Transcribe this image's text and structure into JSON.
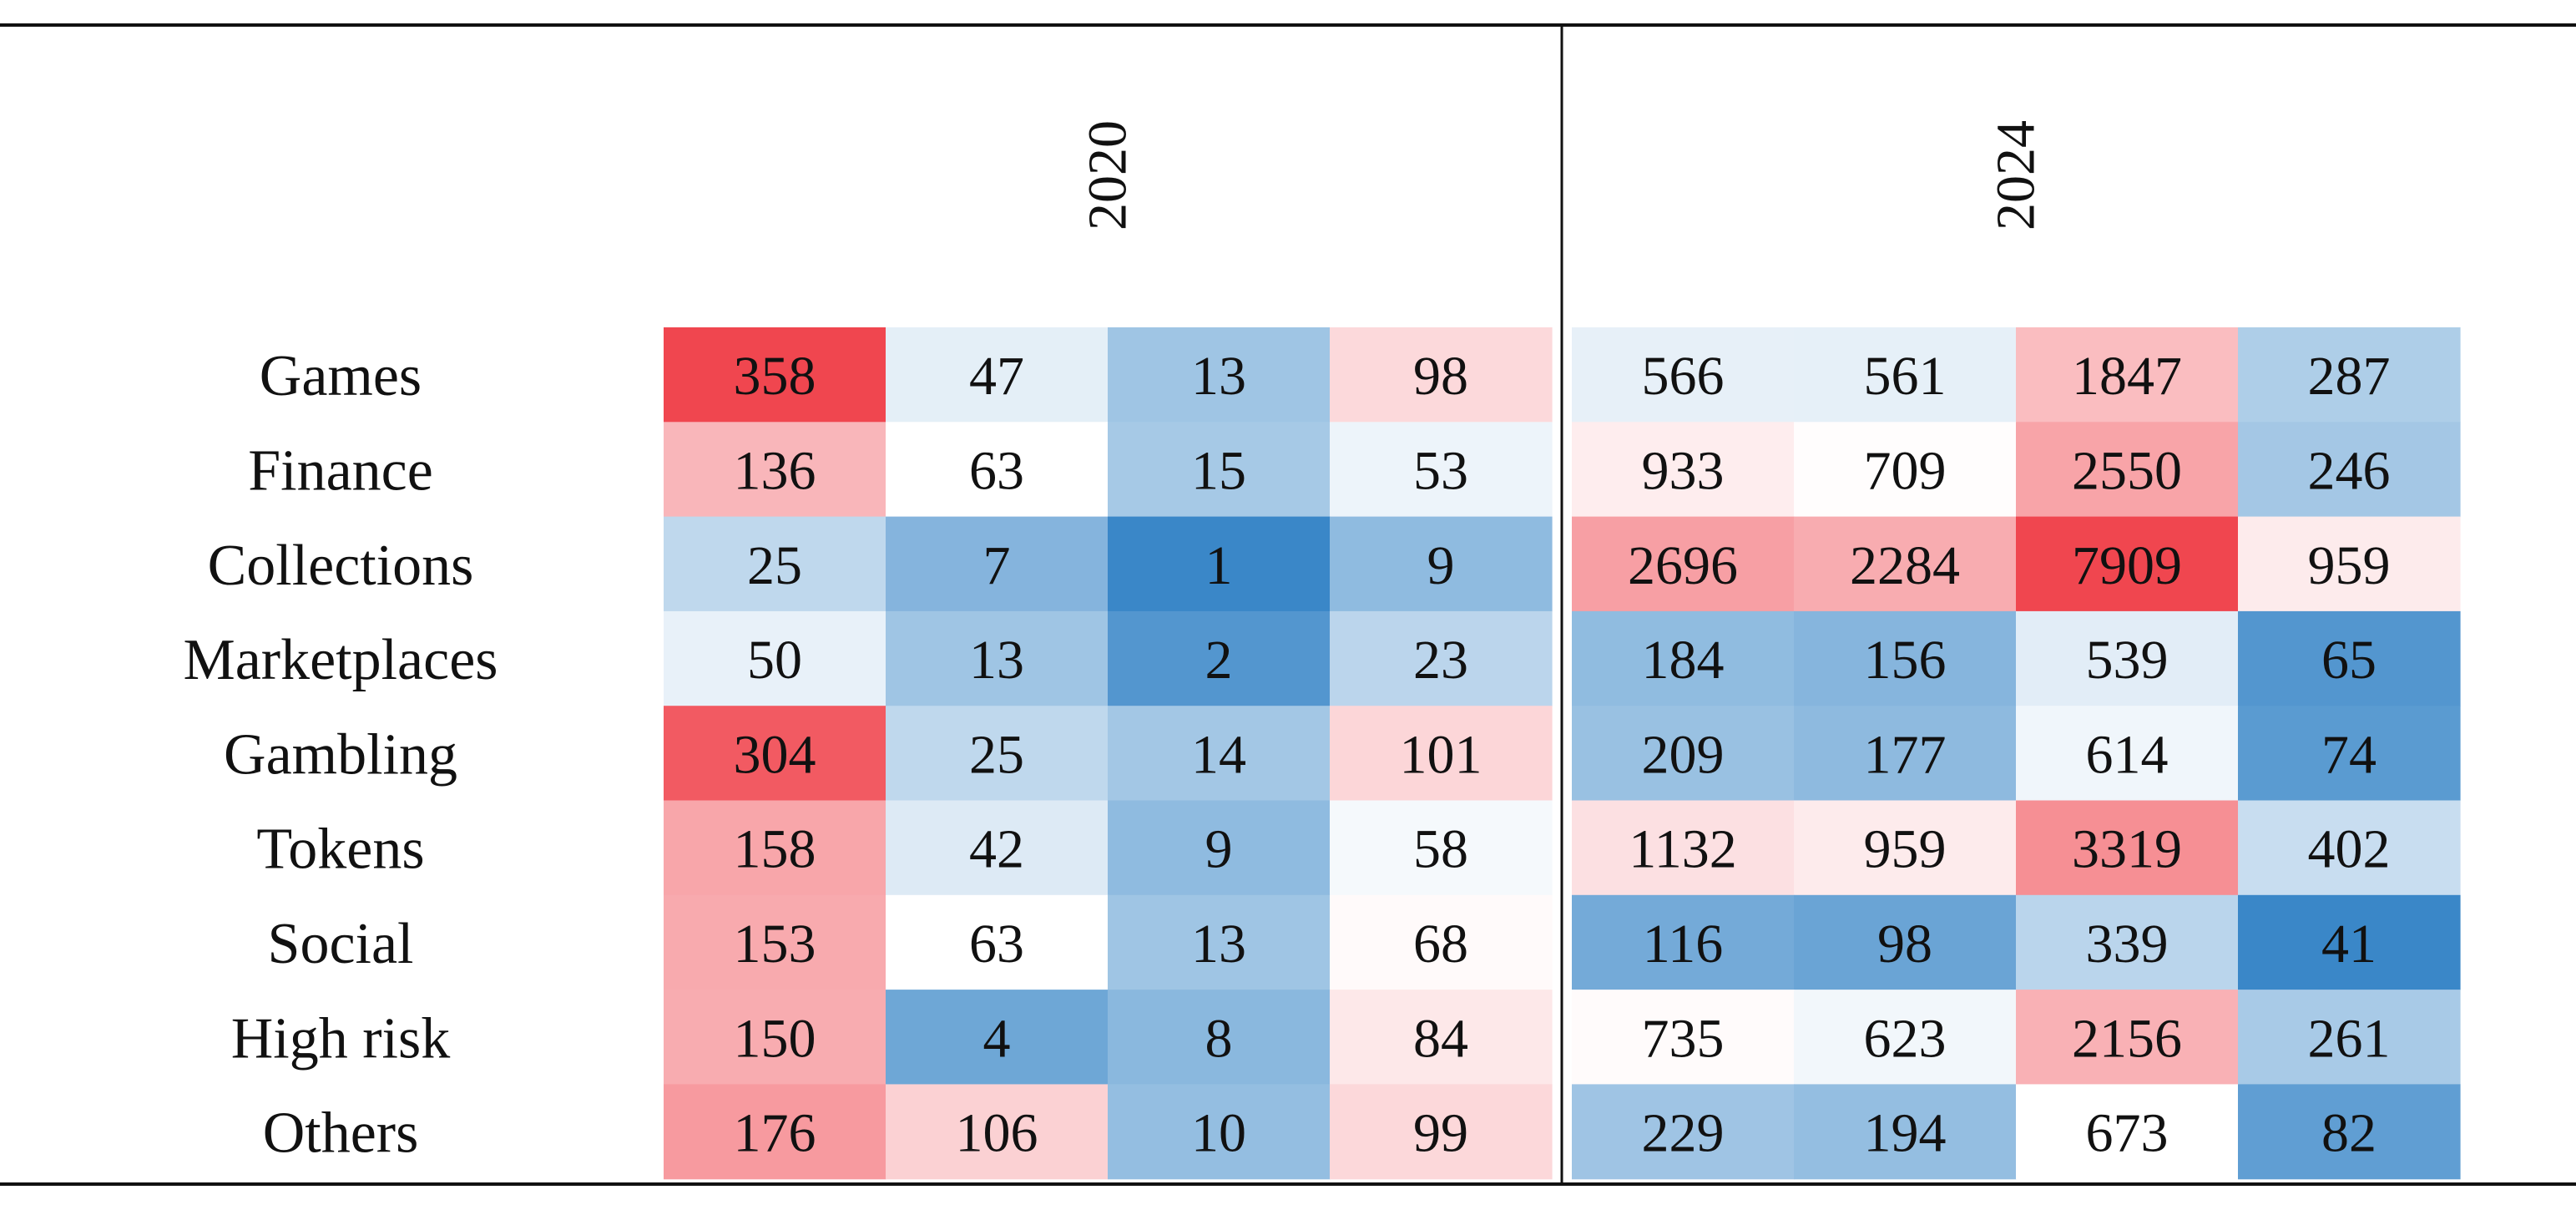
{
  "chart_data": {
    "type": "heatmap",
    "title": "",
    "groups": [
      {
        "label": "2020",
        "columns": 4
      },
      {
        "label": "2024",
        "columns": 4
      }
    ],
    "rows": [
      "Games",
      "Finance",
      "Collections",
      "Marketplaces",
      "Gambling",
      "Tokens",
      "Social",
      "High risk",
      "Others"
    ],
    "values": [
      [
        358,
        47,
        13,
        98,
        566,
        561,
        1847,
        287
      ],
      [
        136,
        63,
        15,
        53,
        933,
        709,
        2550,
        246
      ],
      [
        25,
        7,
        1,
        9,
        2696,
        2284,
        7909,
        959
      ],
      [
        50,
        13,
        2,
        23,
        184,
        156,
        539,
        65
      ],
      [
        304,
        25,
        14,
        101,
        209,
        177,
        614,
        74
      ],
      [
        158,
        42,
        9,
        58,
        1132,
        959,
        3319,
        402
      ],
      [
        153,
        63,
        13,
        68,
        116,
        98,
        339,
        41
      ],
      [
        150,
        4,
        8,
        84,
        735,
        623,
        2156,
        261
      ],
      [
        176,
        106,
        10,
        99,
        229,
        194,
        673,
        82
      ]
    ],
    "colormap": {
      "low": "#3a87c8",
      "mid": "#ffffff",
      "high": "#f0464f"
    },
    "grid": false,
    "legend": "none"
  }
}
